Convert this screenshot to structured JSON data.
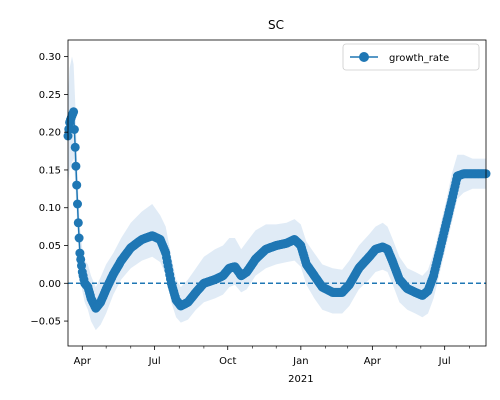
{
  "chart_data": {
    "type": "line",
    "title": "SC",
    "xlabel": "",
    "ylabel": "",
    "x_tick_labels": [
      "Apr",
      "Jul",
      "Oct",
      "Jan",
      "Apr",
      "Jul"
    ],
    "x_year_label": "2021",
    "y_ticks": [
      -0.05,
      0.0,
      0.05,
      0.1,
      0.15,
      0.2,
      0.25,
      0.3
    ],
    "y_tick_labels": [
      "−0.05",
      "0.00",
      "0.05",
      "0.10",
      "0.15",
      "0.20",
      "0.25",
      "0.30"
    ],
    "ylim": [
      -0.083,
      0.322
    ],
    "xlim": [
      "2020-03-14",
      "2021-08-22"
    ],
    "reference_line": 0.0,
    "legend": {
      "placement": "top-right",
      "entries": [
        "growth_rate"
      ]
    },
    "grid": false,
    "colors": {
      "series": "#1f77b4",
      "band": "#c6dbef",
      "reference": "#1f77b4"
    },
    "series": [
      {
        "name": "growth_rate",
        "points": [
          [
            "2020-03-14",
            0.195
          ],
          [
            "2020-03-16",
            0.213
          ],
          [
            "2020-03-19",
            0.222
          ],
          [
            "2020-03-21",
            0.227
          ],
          [
            "2020-03-23",
            0.18
          ],
          [
            "2020-03-25",
            0.13
          ],
          [
            "2020-03-27",
            0.08
          ],
          [
            "2020-03-29",
            0.04
          ],
          [
            "2020-04-01",
            0.015
          ],
          [
            "2020-04-04",
            0.0
          ],
          [
            "2020-04-08",
            -0.005
          ],
          [
            "2020-04-12",
            -0.02
          ],
          [
            "2020-04-18",
            -0.033
          ],
          [
            "2020-04-24",
            -0.025
          ],
          [
            "2020-05-01",
            -0.008
          ],
          [
            "2020-05-10",
            0.012
          ],
          [
            "2020-05-20",
            0.03
          ],
          [
            "2020-06-01",
            0.047
          ],
          [
            "2020-06-15",
            0.058
          ],
          [
            "2020-06-28",
            0.063
          ],
          [
            "2020-07-08",
            0.058
          ],
          [
            "2020-07-15",
            0.04
          ],
          [
            "2020-07-22",
            0.0
          ],
          [
            "2020-07-28",
            -0.022
          ],
          [
            "2020-08-03",
            -0.03
          ],
          [
            "2020-08-12",
            -0.025
          ],
          [
            "2020-08-22",
            -0.012
          ],
          [
            "2020-09-01",
            0.0
          ],
          [
            "2020-09-15",
            0.005
          ],
          [
            "2020-09-25",
            0.01
          ],
          [
            "2020-10-03",
            0.02
          ],
          [
            "2020-10-10",
            0.022
          ],
          [
            "2020-10-18",
            0.01
          ],
          [
            "2020-10-25",
            0.015
          ],
          [
            "2020-11-05",
            0.032
          ],
          [
            "2020-11-18",
            0.045
          ],
          [
            "2020-12-01",
            0.05
          ],
          [
            "2020-12-14",
            0.053
          ],
          [
            "2020-12-24",
            0.058
          ],
          [
            "2021-01-01",
            0.05
          ],
          [
            "2021-01-08",
            0.025
          ],
          [
            "2021-01-18",
            0.01
          ],
          [
            "2021-01-28",
            -0.005
          ],
          [
            "2021-02-10",
            -0.012
          ],
          [
            "2021-02-22",
            -0.012
          ],
          [
            "2021-03-03",
            -0.002
          ],
          [
            "2021-03-15",
            0.02
          ],
          [
            "2021-03-28",
            0.035
          ],
          [
            "2021-04-05",
            0.045
          ],
          [
            "2021-04-14",
            0.048
          ],
          [
            "2021-04-20",
            0.045
          ],
          [
            "2021-04-26",
            0.03
          ],
          [
            "2021-05-05",
            0.005
          ],
          [
            "2021-05-15",
            -0.007
          ],
          [
            "2021-05-25",
            -0.012
          ],
          [
            "2021-06-03",
            -0.016
          ],
          [
            "2021-06-10",
            -0.01
          ],
          [
            "2021-06-17",
            0.01
          ],
          [
            "2021-06-24",
            0.04
          ],
          [
            "2021-07-03",
            0.08
          ],
          [
            "2021-07-10",
            0.11
          ],
          [
            "2021-07-17",
            0.142
          ],
          [
            "2021-07-25",
            0.145
          ],
          [
            "2021-08-05",
            0.145
          ],
          [
            "2021-08-22",
            0.145
          ]
        ],
        "band": [
          [
            "2020-03-14",
            0.13,
            0.25
          ],
          [
            "2020-03-16",
            0.15,
            0.285
          ],
          [
            "2020-03-19",
            0.16,
            0.3
          ],
          [
            "2020-03-21",
            0.165,
            0.29
          ],
          [
            "2020-03-23",
            0.135,
            0.24
          ],
          [
            "2020-03-25",
            0.09,
            0.18
          ],
          [
            "2020-03-27",
            0.05,
            0.12
          ],
          [
            "2020-03-29",
            0.015,
            0.075
          ],
          [
            "2020-04-01",
            -0.01,
            0.045
          ],
          [
            "2020-04-04",
            -0.025,
            0.03
          ],
          [
            "2020-04-08",
            -0.035,
            0.025
          ],
          [
            "2020-04-12",
            -0.05,
            0.01
          ],
          [
            "2020-04-18",
            -0.062,
            -0.005
          ],
          [
            "2020-04-24",
            -0.055,
            0.008
          ],
          [
            "2020-05-01",
            -0.04,
            0.025
          ],
          [
            "2020-05-10",
            -0.015,
            0.04
          ],
          [
            "2020-05-20",
            0.005,
            0.06
          ],
          [
            "2020-06-01",
            0.02,
            0.08
          ],
          [
            "2020-06-15",
            0.03,
            0.095
          ],
          [
            "2020-06-28",
            0.035,
            0.105
          ],
          [
            "2020-07-08",
            0.028,
            0.09
          ],
          [
            "2020-07-15",
            0.012,
            0.075
          ],
          [
            "2020-07-22",
            -0.025,
            0.035
          ],
          [
            "2020-07-28",
            -0.045,
            0.005
          ],
          [
            "2020-08-03",
            -0.052,
            -0.005
          ],
          [
            "2020-08-12",
            -0.048,
            0.005
          ],
          [
            "2020-08-22",
            -0.035,
            0.02
          ],
          [
            "2020-09-01",
            -0.025,
            0.035
          ],
          [
            "2020-09-15",
            -0.02,
            0.045
          ],
          [
            "2020-09-25",
            -0.015,
            0.05
          ],
          [
            "2020-10-03",
            -0.005,
            0.06
          ],
          [
            "2020-10-10",
            -0.002,
            0.06
          ],
          [
            "2020-10-18",
            -0.012,
            0.045
          ],
          [
            "2020-10-25",
            -0.008,
            0.055
          ],
          [
            "2020-11-05",
            0.01,
            0.07
          ],
          [
            "2020-11-18",
            0.02,
            0.078
          ],
          [
            "2020-12-01",
            0.025,
            0.078
          ],
          [
            "2020-12-14",
            0.028,
            0.08
          ],
          [
            "2020-12-24",
            0.03,
            0.085
          ],
          [
            "2021-01-01",
            0.022,
            0.078
          ],
          [
            "2021-01-08",
            -0.002,
            0.055
          ],
          [
            "2021-01-18",
            -0.02,
            0.04
          ],
          [
            "2021-01-28",
            -0.035,
            0.025
          ],
          [
            "2021-02-10",
            -0.04,
            0.02
          ],
          [
            "2021-02-22",
            -0.04,
            0.018
          ],
          [
            "2021-03-03",
            -0.03,
            0.03
          ],
          [
            "2021-03-15",
            -0.008,
            0.05
          ],
          [
            "2021-03-28",
            0.005,
            0.065
          ],
          [
            "2021-04-05",
            0.015,
            0.075
          ],
          [
            "2021-04-14",
            0.018,
            0.08
          ],
          [
            "2021-04-20",
            0.015,
            0.075
          ],
          [
            "2021-04-26",
            0.0,
            0.06
          ],
          [
            "2021-05-05",
            -0.025,
            0.035
          ],
          [
            "2021-05-15",
            -0.035,
            0.02
          ],
          [
            "2021-05-25",
            -0.04,
            0.015
          ],
          [
            "2021-06-03",
            -0.045,
            0.01
          ],
          [
            "2021-06-10",
            -0.04,
            0.018
          ],
          [
            "2021-06-17",
            -0.02,
            0.04
          ],
          [
            "2021-06-24",
            0.01,
            0.07
          ],
          [
            "2021-07-03",
            0.05,
            0.11
          ],
          [
            "2021-07-10",
            0.08,
            0.145
          ],
          [
            "2021-07-17",
            0.112,
            0.17
          ],
          [
            "2021-07-25",
            0.12,
            0.17
          ],
          [
            "2021-08-05",
            0.125,
            0.165
          ],
          [
            "2021-08-22",
            0.125,
            0.165
          ]
        ]
      }
    ]
  }
}
